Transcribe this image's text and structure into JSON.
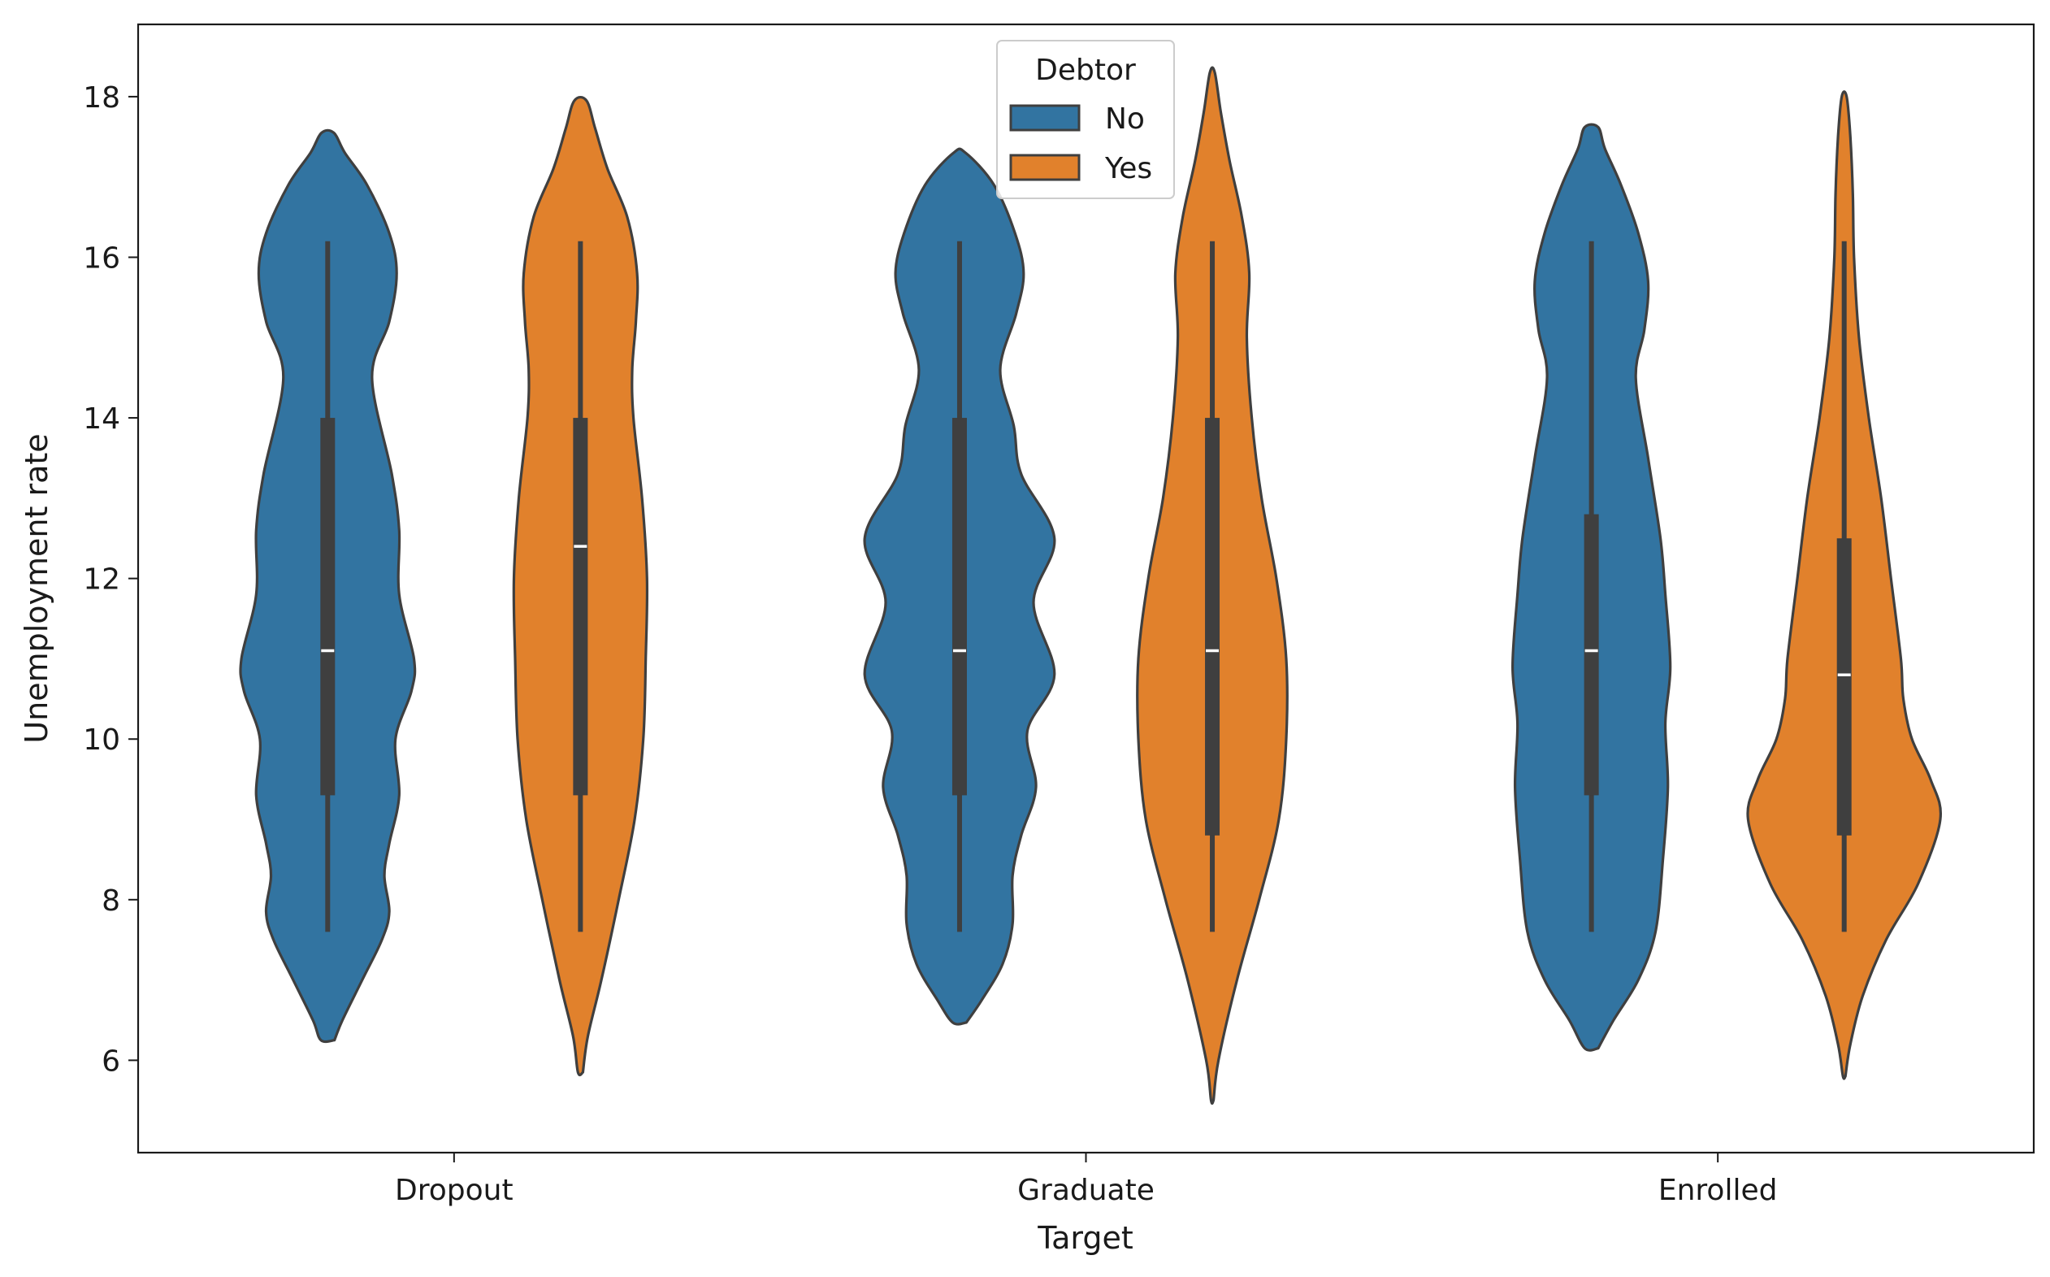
{
  "chart_data": {
    "type": "violin",
    "xlabel": "Target",
    "ylabel": "Unemployment rate",
    "categories": [
      "Dropout",
      "Graduate",
      "Enrolled"
    ],
    "ylim": [
      4.85,
      18.9
    ],
    "yticks": [
      "6",
      "8",
      "10",
      "12",
      "14",
      "16",
      "18"
    ],
    "legend": {
      "title": "Debtor",
      "placement": "top-center",
      "entries": [
        {
          "label": "No",
          "color": "#3274a1"
        },
        {
          "label": "Yes",
          "color": "#e1812c"
        }
      ]
    },
    "colors": {
      "edge": "#3f3f3f",
      "box": "#3f3f3f",
      "median": "#ffffff"
    },
    "series": [
      {
        "name": "No",
        "color": "#3274a1",
        "violins": [
          {
            "category": "Dropout",
            "whisker_low": 7.6,
            "q1": 9.3,
            "median": 11.1,
            "q3": 14.0,
            "whisker_high": 16.2,
            "profile": [
              [
                6.25,
                0.055
              ],
              [
                6.5,
                0.12
              ],
              [
                7.0,
                0.28
              ],
              [
                7.5,
                0.44
              ],
              [
                7.85,
                0.5
              ],
              [
                8.3,
                0.46
              ],
              [
                8.7,
                0.5
              ],
              [
                9.3,
                0.58
              ],
              [
                10.0,
                0.55
              ],
              [
                10.6,
                0.68
              ],
              [
                11.0,
                0.7
              ],
              [
                11.8,
                0.58
              ],
              [
                12.6,
                0.58
              ],
              [
                13.3,
                0.52
              ],
              [
                14.5,
                0.36
              ],
              [
                15.2,
                0.5
              ],
              [
                15.8,
                0.56
              ],
              [
                16.3,
                0.5
              ],
              [
                16.9,
                0.32
              ],
              [
                17.3,
                0.14
              ],
              [
                17.55,
                0.05
              ]
            ]
          },
          {
            "category": "Graduate",
            "whisker_low": 7.6,
            "q1": 9.3,
            "median": 11.1,
            "q3": 14.0,
            "whisker_high": 16.2,
            "profile": [
              [
                6.47,
                0.055
              ],
              [
                6.75,
                0.18
              ],
              [
                7.2,
                0.35
              ],
              [
                7.7,
                0.43
              ],
              [
                8.3,
                0.43
              ],
              [
                8.8,
                0.5
              ],
              [
                9.4,
                0.62
              ],
              [
                10.1,
                0.55
              ],
              [
                10.8,
                0.77
              ],
              [
                11.7,
                0.6
              ],
              [
                12.5,
                0.77
              ],
              [
                13.3,
                0.5
              ],
              [
                13.9,
                0.44
              ],
              [
                14.6,
                0.33
              ],
              [
                15.3,
                0.46
              ],
              [
                15.8,
                0.52
              ],
              [
                16.3,
                0.45
              ],
              [
                16.9,
                0.28
              ],
              [
                17.3,
                0.05
              ]
            ]
          },
          {
            "category": "Enrolled",
            "whisker_low": 7.6,
            "q1": 9.3,
            "median": 11.1,
            "q3": 12.8,
            "whisker_high": 16.2,
            "profile": [
              [
                6.15,
                0.055
              ],
              [
                6.5,
                0.18
              ],
              [
                7.0,
                0.38
              ],
              [
                7.6,
                0.52
              ],
              [
                8.5,
                0.58
              ],
              [
                9.4,
                0.62
              ],
              [
                10.2,
                0.6
              ],
              [
                10.9,
                0.64
              ],
              [
                11.8,
                0.6
              ],
              [
                12.5,
                0.56
              ],
              [
                13.5,
                0.46
              ],
              [
                14.5,
                0.36
              ],
              [
                15.1,
                0.43
              ],
              [
                15.7,
                0.46
              ],
              [
                16.3,
                0.38
              ],
              [
                16.9,
                0.24
              ],
              [
                17.35,
                0.11
              ],
              [
                17.62,
                0.055
              ]
            ]
          }
        ]
      },
      {
        "name": "Yes",
        "color": "#e1812c",
        "violins": [
          {
            "category": "Dropout",
            "whisker_low": 7.6,
            "q1": 9.3,
            "median": 12.4,
            "q3": 14.0,
            "whisker_high": 16.2,
            "profile": [
              [
                5.85,
                0.02
              ],
              [
                6.3,
                0.06
              ],
              [
                7.0,
                0.17
              ],
              [
                8.0,
                0.31
              ],
              [
                9.0,
                0.44
              ],
              [
                10.0,
                0.51
              ],
              [
                11.0,
                0.53
              ],
              [
                12.0,
                0.54
              ],
              [
                13.0,
                0.5
              ],
              [
                14.0,
                0.43
              ],
              [
                14.6,
                0.42
              ],
              [
                15.2,
                0.45
              ],
              [
                15.8,
                0.46
              ],
              [
                16.5,
                0.38
              ],
              [
                17.1,
                0.22
              ],
              [
                17.6,
                0.12
              ],
              [
                17.95,
                0.05
              ]
            ]
          },
          {
            "category": "Graduate",
            "whisker_low": 7.6,
            "q1": 8.8,
            "median": 11.1,
            "q3": 14.0,
            "whisker_high": 16.2,
            "profile": [
              [
                5.5,
                0.01
              ],
              [
                6.0,
                0.05
              ],
              [
                7.0,
                0.2
              ],
              [
                8.0,
                0.38
              ],
              [
                9.0,
                0.54
              ],
              [
                10.0,
                0.6
              ],
              [
                11.0,
                0.6
              ],
              [
                12.0,
                0.52
              ],
              [
                13.0,
                0.4
              ],
              [
                14.0,
                0.32
              ],
              [
                15.0,
                0.28
              ],
              [
                15.8,
                0.3
              ],
              [
                16.5,
                0.24
              ],
              [
                17.2,
                0.14
              ],
              [
                17.8,
                0.07
              ],
              [
                18.3,
                0.02
              ]
            ]
          },
          {
            "category": "Enrolled",
            "whisker_low": 7.6,
            "q1": 8.8,
            "median": 10.8,
            "q3": 12.5,
            "whisker_high": 16.2,
            "profile": [
              [
                5.8,
                0.01
              ],
              [
                6.2,
                0.05
              ],
              [
                6.8,
                0.15
              ],
              [
                7.5,
                0.34
              ],
              [
                8.2,
                0.6
              ],
              [
                9.0,
                0.78
              ],
              [
                9.5,
                0.7
              ],
              [
                10.0,
                0.55
              ],
              [
                10.5,
                0.48
              ],
              [
                11.0,
                0.46
              ],
              [
                12.0,
                0.38
              ],
              [
                13.0,
                0.3
              ],
              [
                14.0,
                0.2
              ],
              [
                15.0,
                0.12
              ],
              [
                16.0,
                0.08
              ],
              [
                16.8,
                0.07
              ],
              [
                17.5,
                0.05
              ],
              [
                18.0,
                0.02
              ]
            ]
          }
        ]
      }
    ]
  }
}
